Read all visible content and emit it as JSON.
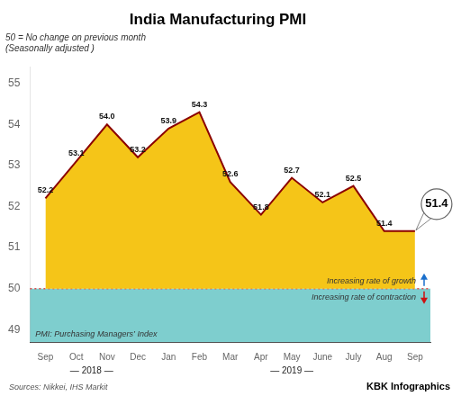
{
  "chart_data": {
    "type": "line",
    "title": "India Manufacturing PMI",
    "subtitle": [
      "50 = No change on previous month",
      "(Seasonally adjusted )"
    ],
    "categories": [
      "Sep",
      "Oct",
      "Nov",
      "Dec",
      "Jan",
      "Feb",
      "Mar",
      "Apr",
      "May",
      "June",
      "July",
      "Aug",
      "Sep"
    ],
    "values": [
      52.2,
      53.1,
      54.0,
      53.2,
      53.9,
      54.3,
      52.6,
      51.8,
      52.7,
      52.1,
      52.5,
      51.4,
      51.4
    ],
    "value_labels": [
      "52.2",
      "53.1",
      "54.0",
      "53.2",
      "53.9",
      "54.3",
      "52.6",
      "51.8",
      "52.7",
      "52.1",
      "52.5",
      "51.4",
      "51.4"
    ],
    "data_labels": true,
    "color": "#8b0000",
    "fill_color": "#f5c518",
    "band_color": "#7ecece",
    "reference_line": {
      "value": 50.0,
      "color": "#e05050"
    },
    "ylim": [
      48.7,
      55.4
    ],
    "yticks": [
      49,
      50,
      51,
      52,
      53,
      54,
      55
    ],
    "grid": false,
    "x_groups": [
      {
        "label": "— 2018 —",
        "count": 4
      },
      {
        "label": "— 2019 —",
        "count": 9
      }
    ],
    "annotations": [
      {
        "text": "Increasing rate of growth",
        "arrow": "up",
        "color": "#1a6fcc"
      },
      {
        "text": "Increasing rate of contraction",
        "arrow": "down",
        "color": "#cc1111"
      },
      {
        "text": "PMI: Purchasing Managers’ Index"
      }
    ],
    "source": "Sources: Nikkei, IHS Markit",
    "credit": "KBK Infographics"
  }
}
